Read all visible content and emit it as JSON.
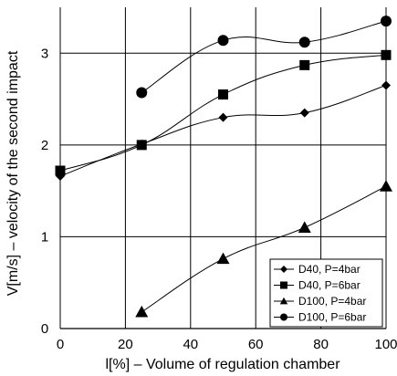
{
  "chart_data": {
    "type": "line",
    "title": "",
    "xlabel": "l[%] – Volume of regulation chamber",
    "ylabel": "V[m/s] – velocity of the second impact",
    "xlim": [
      0,
      100
    ],
    "ylim": [
      0,
      3.5
    ],
    "xticks": [
      "0",
      "20",
      "40",
      "60",
      "80",
      "100"
    ],
    "yticks": [
      "0",
      "1",
      "2",
      "3"
    ],
    "grid": true,
    "legend_position": "bottom-right",
    "series": [
      {
        "name": "D40, P=4bar",
        "marker": "diamond",
        "x": [
          0,
          25,
          50,
          75,
          100
        ],
        "y": [
          1.66,
          2.01,
          2.3,
          2.35,
          2.65
        ]
      },
      {
        "name": "D40, P=6bar",
        "marker": "square",
        "x": [
          0,
          25,
          50,
          75,
          100
        ],
        "y": [
          1.72,
          2.0,
          2.55,
          2.87,
          2.98
        ]
      },
      {
        "name": "D100, P=4bar",
        "marker": "triangle",
        "x": [
          25,
          50,
          75,
          100
        ],
        "y": [
          0.18,
          0.76,
          1.1,
          1.55
        ]
      },
      {
        "name": "D100, P=6bar",
        "marker": "circle",
        "x": [
          25,
          50,
          75,
          100
        ],
        "y": [
          2.57,
          3.14,
          3.12,
          3.35
        ]
      }
    ]
  }
}
